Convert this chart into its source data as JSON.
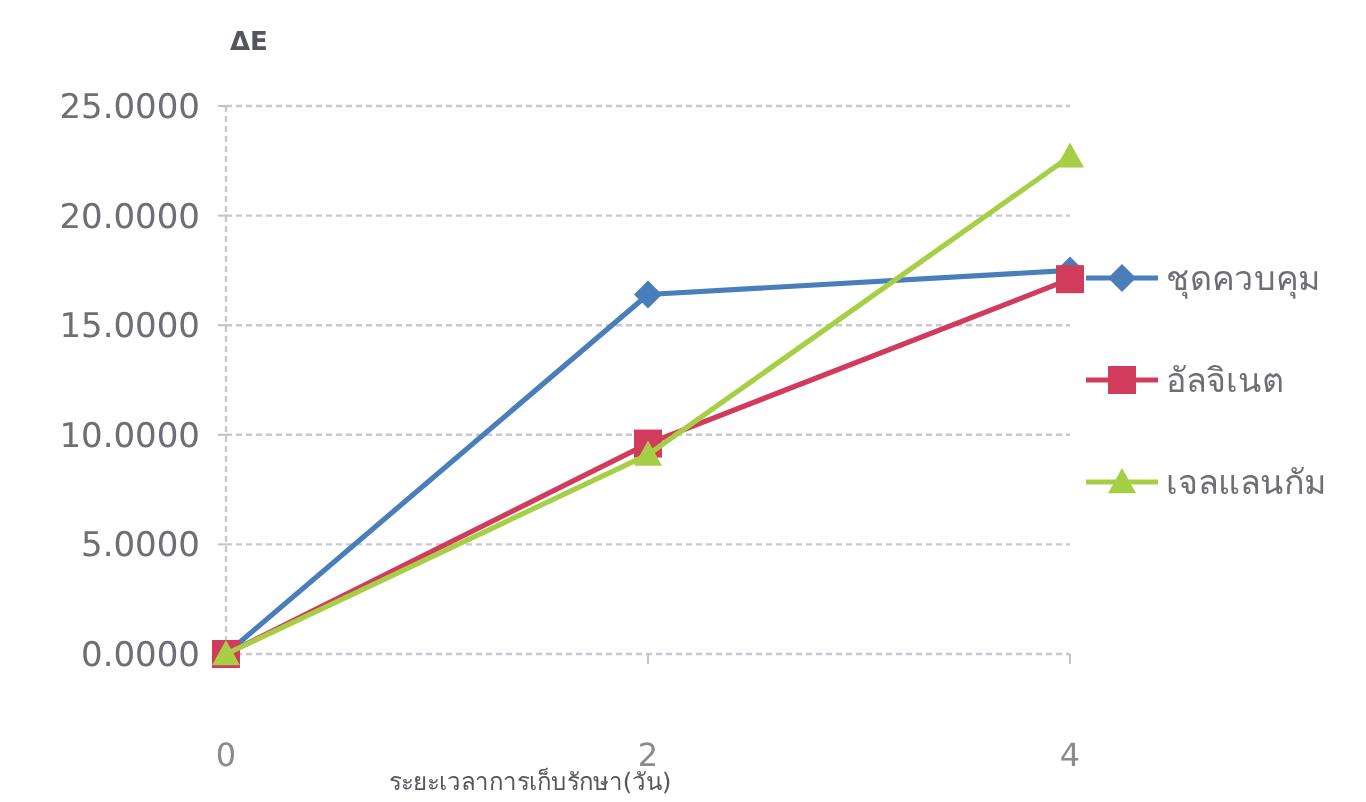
{
  "chart_data": {
    "type": "line",
    "xlabel": "ระยะเวลาการเก็บรักษา(วัน)",
    "ylabel": "ΔE",
    "x": [
      0,
      2,
      4
    ],
    "xlim": [
      0,
      4
    ],
    "xticks": [
      0,
      2,
      4
    ],
    "ylim": [
      0,
      25
    ],
    "yticks": [
      {
        "value": 0,
        "label": "0.0000"
      },
      {
        "value": 5,
        "label": "5.0000"
      },
      {
        "value": 10,
        "label": "10.0000"
      },
      {
        "value": 15,
        "label": "15.0000"
      },
      {
        "value": 20,
        "label": "20.0000"
      },
      {
        "value": 25,
        "label": "25.0000"
      }
    ],
    "grid": "y",
    "legend": "right",
    "series": [
      {
        "name": "ชุดควบคุม",
        "color": "#4a7ebb",
        "marker": "diamond",
        "values": [
          0,
          16.4,
          17.5
        ]
      },
      {
        "name": "อัลจิเนต",
        "color": "#d23c5c",
        "marker": "square",
        "values": [
          0,
          9.6,
          17.1
        ]
      },
      {
        "name": "เจลแลนกัม",
        "color": "#a6cf45",
        "marker": "triangle",
        "values": [
          0,
          9.1,
          22.7
        ]
      }
    ]
  }
}
